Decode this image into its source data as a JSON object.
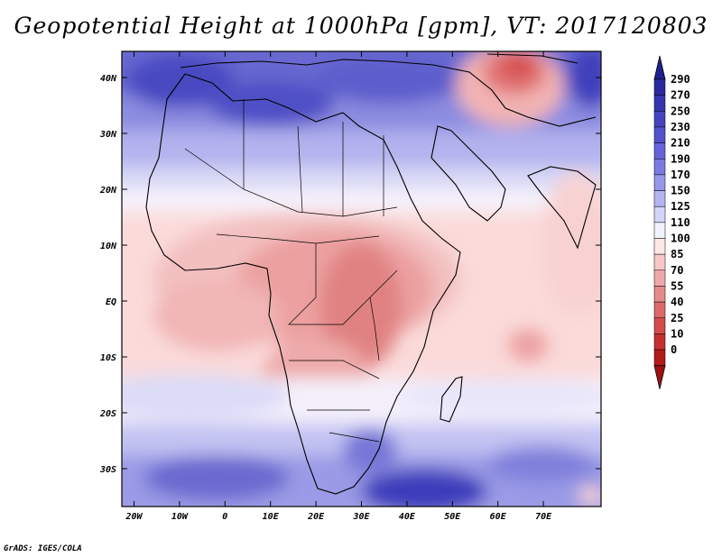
{
  "title": "Geopotential Height at 1000hPa [gpm], VT: 2017120803",
  "credit": "GrADS: IGES/COLA",
  "map": {
    "variable": "Geopotential Height",
    "level": "1000hPa",
    "units": "gpm",
    "valid_time": "2017120803",
    "lon_labels": [
      "20W",
      "10W",
      "0",
      "10E",
      "20E",
      "30E",
      "40E",
      "50E",
      "60E",
      "70E"
    ],
    "lat_labels": [
      "40N",
      "30N",
      "20N",
      "10N",
      "EQ",
      "10S",
      "20S",
      "30S"
    ]
  },
  "colorbar": {
    "labels": [
      "290",
      "270",
      "250",
      "230",
      "210",
      "190",
      "170",
      "150",
      "125",
      "110",
      "100",
      "85",
      "70",
      "55",
      "40",
      "25",
      "10",
      "0"
    ],
    "colors": [
      "#2a2a9e",
      "#3535b0",
      "#4444c0",
      "#5252cc",
      "#6464d8",
      "#7a7ae2",
      "#9696ea",
      "#b4b4f2",
      "#d4d4f8",
      "#f2f2ff",
      "#fde6e6",
      "#f7c8c8",
      "#efa8a8",
      "#e58a8a",
      "#dc6a6a",
      "#d24c4c",
      "#c43030",
      "#b31a1a"
    ],
    "top_color": "#202090",
    "bottom_color": "#9e1010"
  }
}
